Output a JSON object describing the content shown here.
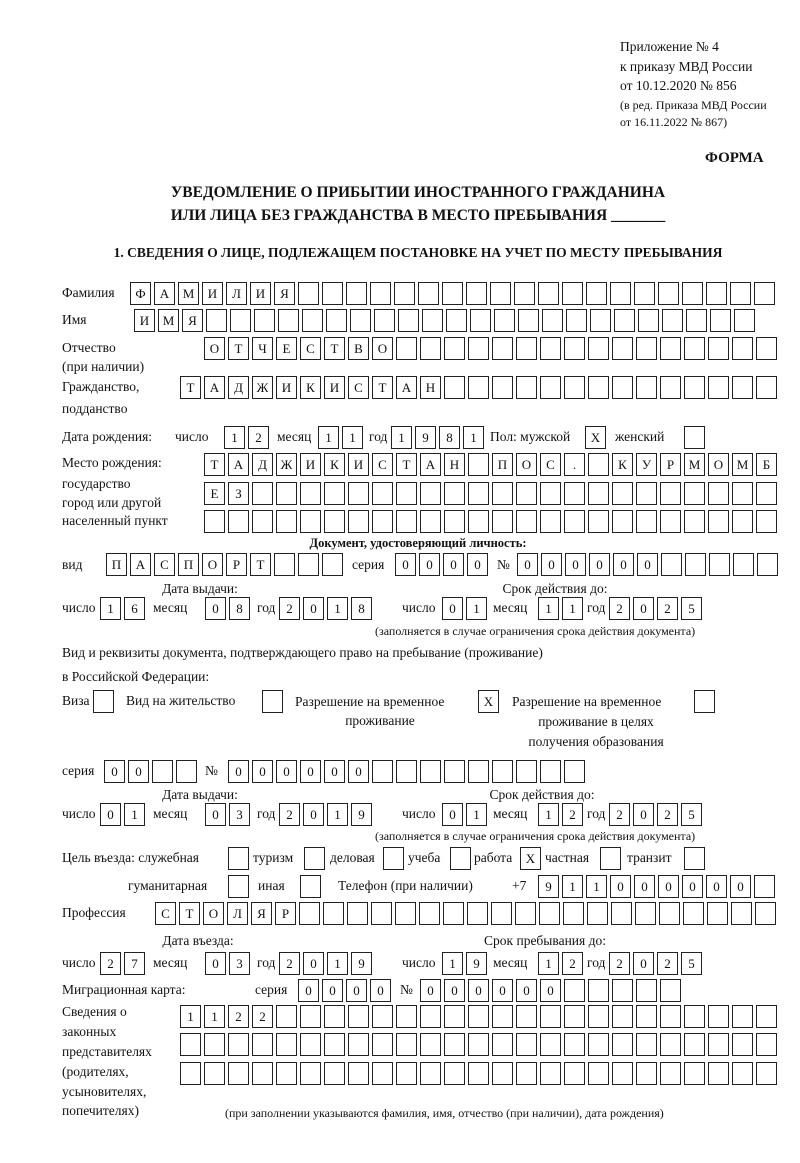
{
  "header": {
    "appendix": "Приложение № 4",
    "order": "к приказу МВД России",
    "order_date": "от 10.12.2020 № 856",
    "edition": "(в ред. Приказа МВД России",
    "edition_date": "от 16.11.2022 № 867)",
    "form_label": "ФОРМА",
    "title_line1": "УВЕДОМЛЕНИЕ О ПРИБЫТИИ ИНОСТРАННОГО ГРАЖДАНИНА",
    "title_line2": "ИЛИ ЛИЦА БЕЗ ГРАЖДАНСТВА В МЕСТО ПРЕБЫВАНИЯ _______"
  },
  "section1": {
    "heading": "1. СВЕДЕНИЯ О ЛИЦЕ, ПОДЛЕЖАЩЕМ ПОСТАНОВКЕ НА УЧЕТ ПО МЕСТУ ПРЕБЫВАНИЯ",
    "surname": {
      "label": "Фамилия",
      "value": "ФАМИЛИЯ"
    },
    "name": {
      "label": "Имя",
      "value": "ИМЯ"
    },
    "patronymic": {
      "label": "Отчество",
      "label2": "(при наличии)",
      "value": "ОТЧЕСТВО"
    },
    "citizenship": {
      "label": "Гражданство,",
      "label2": "подданство",
      "value": "ТАДЖИКИСТАН"
    },
    "birth_date": {
      "label": "Дата рождения:",
      "day_label": "число",
      "day": "12",
      "month_label": "месяц",
      "month": "11",
      "year_label": "год",
      "year": "1981"
    },
    "sex": {
      "label": "Пол: мужской",
      "male": "X",
      "female_label": "женский",
      "female": ""
    },
    "birth_place": {
      "label1": "Место рождения:",
      "label2": "государство",
      "label3": "город или другой",
      "label4": "населенный пункт",
      "row1": "ТАДЖИКИСТАН ПОС. КУРМОМБ",
      "row2": "ЕЗ",
      "row3": ""
    },
    "id_document": {
      "heading": "Документ, удостоверяющий личность:",
      "type_label": "вид",
      "type": "ПАСПОРТ",
      "series_label": "серия",
      "series": "0000",
      "number_label": "№",
      "number": "000000",
      "issue_label": "Дата выдачи:",
      "valid_label": "Срок действия до:",
      "day_label": "число",
      "month_label": "месяц",
      "year_label": "год",
      "issue_day": "16",
      "issue_month": "08",
      "issue_year": "2018",
      "valid_day": "01",
      "valid_month": "11",
      "valid_year": "2025",
      "note": "(заполняется в случае ограничения срока действия документа)"
    },
    "stay_document": {
      "heading1": "Вид и реквизиты документа, подтверждающего право на пребывание (проживание)",
      "heading2": "в Российской Федерации:",
      "visa_label": "Виза",
      "visa": "",
      "residence_label": "Вид на жительство",
      "residence": "",
      "temp_label1": "Разрешение на временное",
      "temp_label2": "проживание",
      "temp": "X",
      "edu_label1": "Разрешение на временное",
      "edu_label2": "проживание в целях",
      "edu_label3": "получения образования",
      "edu": "",
      "series_label": "серия",
      "series": "00",
      "number_label": "№",
      "number": "000000",
      "issue_label": "Дата выдачи:",
      "valid_label": "Срок действия до:",
      "day_label": "число",
      "month_label": "месяц",
      "year_label": "год",
      "issue_day": "01",
      "issue_month": "03",
      "issue_year": "2019",
      "valid_day": "01",
      "valid_month": "12",
      "valid_year": "2025",
      "note": "(заполняется в случае ограничения срока действия документа)"
    },
    "purpose": {
      "label": "Цель въезда: служебная",
      "official": "",
      "tourism_label": "туризм",
      "tourism": "",
      "business_label": "деловая",
      "business": "",
      "study_label": "учеба",
      "study": "",
      "work_label": "работа",
      "work": "X",
      "private_label": "частная",
      "private": "",
      "transit_label": "транзит",
      "transit": "",
      "humanitarian_label": "гуманитарная",
      "humanitarian": "",
      "other_label": "иная",
      "other": ""
    },
    "phone": {
      "label": "Телефон (при наличии)",
      "prefix": "+7",
      "value": "911000000"
    },
    "profession": {
      "label": "Профессия",
      "value": "СТОЛЯР"
    },
    "entry": {
      "entry_label": "Дата въезда:",
      "stay_label": "Срок пребывания до:",
      "day_label": "число",
      "month_label": "месяц",
      "year_label": "год",
      "entry_day": "27",
      "entry_month": "03",
      "entry_year": "2019",
      "stay_day": "19",
      "stay_month": "12",
      "stay_year": "2025"
    },
    "migration_card": {
      "label": "Миграционная карта:",
      "series_label": "серия",
      "series": "0000",
      "number_label": "№",
      "number": "000000"
    },
    "representatives": {
      "label1": "Сведения о",
      "label2": "законных",
      "label3": "представителях",
      "label4": "(родителях,",
      "label5": "усыновителях,",
      "label6": "попечителях)",
      "row1": "1122",
      "row2": "",
      "row3": "",
      "note": "(при заполнении указываются фамилия, имя, отчество (при наличии), дата рождения)"
    }
  }
}
